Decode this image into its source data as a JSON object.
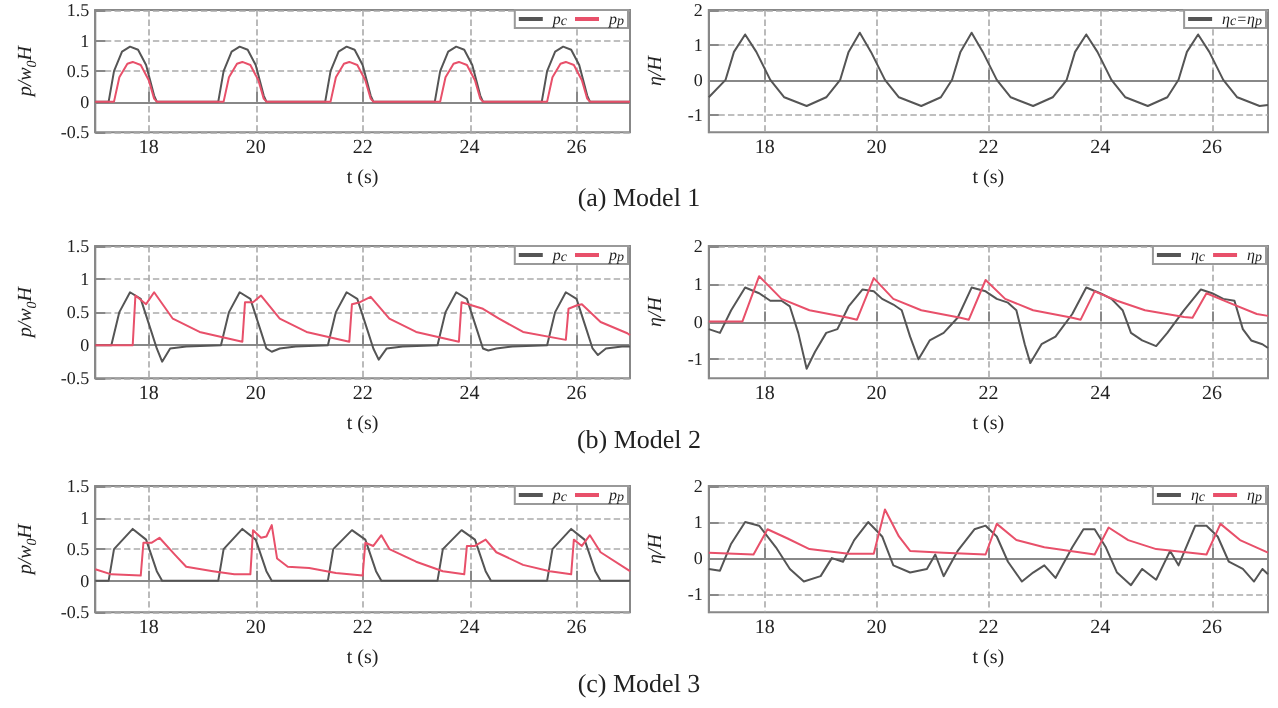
{
  "chart_data": [
    {
      "type": "line",
      "xlabel": "t (s)",
      "ylabel": "p/w$_{0}$H",
      "xlim": [
        17,
        27
      ],
      "xticks": [
        18,
        20,
        22,
        24,
        26
      ],
      "ylim": [
        -0.5,
        1.5
      ],
      "yticks": [
        -0.5,
        0,
        0.5,
        1,
        1.5
      ],
      "grid": true,
      "legend": "top right",
      "marker": "none",
      "annotations": [
        "(a) Model 1"
      ],
      "series": [
        {
          "name": "p$_{c}$",
          "color": "#555555",
          "x": [
            17,
            17.25,
            17.35,
            17.5,
            17.65,
            17.8,
            17.95,
            18.1,
            18.15,
            19.3,
            19.4,
            19.55,
            19.7,
            19.85,
            20.0,
            20.15,
            20.2,
            21.3,
            21.4,
            21.55,
            21.7,
            21.85,
            22.0,
            22.15,
            22.2,
            23.35,
            23.45,
            23.6,
            23.75,
            23.9,
            24.05,
            24.2,
            24.25,
            25.35,
            25.45,
            25.6,
            25.75,
            25.9,
            26.05,
            26.2,
            26.25,
            27
          ],
          "values": [
            0,
            0,
            0.5,
            0.82,
            0.9,
            0.85,
            0.6,
            0.1,
            0,
            0,
            0.5,
            0.82,
            0.9,
            0.85,
            0.6,
            0.1,
            0,
            0,
            0.5,
            0.82,
            0.9,
            0.85,
            0.6,
            0.1,
            0,
            0,
            0.5,
            0.82,
            0.9,
            0.85,
            0.6,
            0.1,
            0,
            0,
            0.5,
            0.82,
            0.9,
            0.85,
            0.6,
            0.1,
            0,
            0
          ]
        },
        {
          "name": "p$_{p}$",
          "color": "#e8506a",
          "x": [
            17,
            17.35,
            17.45,
            17.6,
            17.7,
            17.85,
            18.0,
            18.1,
            18.15,
            19.4,
            19.5,
            19.65,
            19.75,
            19.9,
            20.05,
            20.15,
            20.2,
            21.4,
            21.5,
            21.65,
            21.75,
            21.9,
            22.05,
            22.15,
            22.2,
            23.45,
            23.55,
            23.7,
            23.8,
            23.95,
            24.1,
            24.2,
            24.25,
            25.45,
            25.55,
            25.7,
            25.8,
            25.95,
            26.1,
            26.2,
            26.25,
            27
          ],
          "values": [
            0,
            0,
            0.4,
            0.62,
            0.65,
            0.6,
            0.35,
            0.05,
            0,
            0,
            0.4,
            0.62,
            0.65,
            0.6,
            0.35,
            0.05,
            0,
            0,
            0.4,
            0.62,
            0.65,
            0.6,
            0.35,
            0.05,
            0,
            0,
            0.4,
            0.62,
            0.65,
            0.6,
            0.35,
            0.05,
            0,
            0,
            0.4,
            0.62,
            0.65,
            0.6,
            0.35,
            0.05,
            0,
            0
          ]
        }
      ]
    },
    {
      "type": "line",
      "xlabel": "t (s)",
      "ylabel": "η/H",
      "xlim": [
        17,
        27
      ],
      "xticks": [
        18,
        20,
        22,
        24,
        26
      ],
      "ylim": [
        -1.5,
        2
      ],
      "yticks": [
        -1,
        0,
        1,
        2
      ],
      "grid": true,
      "legend": "top right",
      "marker": "none",
      "series": [
        {
          "name": "η$_{c}$=η$_{p}$",
          "color": "#555555",
          "x": [
            17,
            17.3,
            17.45,
            17.65,
            17.85,
            18.1,
            18.35,
            18.75,
            19.1,
            19.35,
            19.5,
            19.7,
            19.9,
            20.15,
            20.4,
            20.8,
            21.15,
            21.35,
            21.5,
            21.7,
            21.9,
            22.15,
            22.4,
            22.8,
            23.15,
            23.4,
            23.55,
            23.75,
            23.95,
            24.2,
            24.45,
            24.85,
            25.2,
            25.4,
            25.55,
            25.75,
            25.95,
            26.2,
            26.45,
            26.85,
            27
          ],
          "values": [
            -0.5,
            0,
            0.8,
            1.3,
            0.8,
            0,
            -0.5,
            -0.75,
            -0.5,
            0,
            0.8,
            1.35,
            0.8,
            0,
            -0.5,
            -0.75,
            -0.5,
            0,
            0.8,
            1.35,
            0.8,
            0,
            -0.5,
            -0.75,
            -0.5,
            0,
            0.8,
            1.3,
            0.8,
            0,
            -0.5,
            -0.75,
            -0.5,
            0,
            0.8,
            1.3,
            0.8,
            0,
            -0.5,
            -0.75,
            -0.72
          ]
        }
      ]
    },
    {
      "type": "line",
      "xlabel": "t (s)",
      "ylabel": "p/w$_{0}$H",
      "xlim": [
        17,
        27
      ],
      "xticks": [
        18,
        20,
        22,
        24,
        26
      ],
      "ylim": [
        -0.5,
        1.5
      ],
      "yticks": [
        -0.5,
        0,
        0.5,
        1,
        1.5
      ],
      "grid": true,
      "legend": "top right",
      "marker": "none",
      "annotations": [
        "(b) Model 2"
      ],
      "series": [
        {
          "name": "p$_{c}$",
          "color": "#555555",
          "x": [
            17,
            17.3,
            17.45,
            17.65,
            17.85,
            18.05,
            18.15,
            18.25,
            18.4,
            18.7,
            19.35,
            19.5,
            19.7,
            19.9,
            20.1,
            20.2,
            20.3,
            20.45,
            20.75,
            21.35,
            21.5,
            21.7,
            21.9,
            22.1,
            22.2,
            22.3,
            22.45,
            22.75,
            23.4,
            23.55,
            23.75,
            23.95,
            24.15,
            24.25,
            24.35,
            24.5,
            24.8,
            25.45,
            25.6,
            25.8,
            26.0,
            26.2,
            26.3,
            26.4,
            26.55,
            26.85,
            27
          ],
          "values": [
            0,
            0,
            0.5,
            0.8,
            0.7,
            0.2,
            -0.05,
            -0.25,
            -0.05,
            -0.02,
            0,
            0.5,
            0.8,
            0.7,
            0.2,
            -0.05,
            -0.1,
            -0.05,
            -0.02,
            0,
            0.5,
            0.8,
            0.7,
            0.2,
            -0.05,
            -0.22,
            -0.05,
            -0.02,
            0,
            0.5,
            0.8,
            0.7,
            0.2,
            -0.05,
            -0.08,
            -0.05,
            -0.02,
            0,
            0.5,
            0.8,
            0.7,
            0.2,
            -0.05,
            -0.15,
            -0.05,
            -0.02,
            -0.02
          ]
        },
        {
          "name": "p$_{p}$",
          "color": "#e8506a",
          "x": [
            17,
            17.7,
            17.75,
            17.95,
            18.1,
            18.45,
            18.95,
            19.75,
            19.8,
            19.95,
            20.1,
            20.45,
            20.95,
            21.75,
            21.8,
            21.95,
            22.15,
            22.5,
            23.0,
            23.8,
            23.85,
            24.05,
            24.25,
            24.55,
            25.0,
            25.8,
            25.85,
            26.0,
            26.1,
            26.45,
            26.95,
            27
          ],
          "values": [
            0,
            0,
            0.75,
            0.62,
            0.8,
            0.4,
            0.2,
            0.05,
            0.65,
            0.65,
            0.75,
            0.4,
            0.2,
            0.05,
            0.62,
            0.65,
            0.73,
            0.4,
            0.2,
            0.05,
            0.65,
            0.6,
            0.55,
            0.4,
            0.2,
            0.08,
            0.55,
            0.6,
            0.62,
            0.35,
            0.18,
            0.15
          ]
        }
      ]
    },
    {
      "type": "line",
      "xlabel": "t (s)",
      "ylabel": "η/H",
      "xlim": [
        17,
        27
      ],
      "xticks": [
        18,
        20,
        22,
        24,
        26
      ],
      "ylim": [
        -1.5,
        2
      ],
      "yticks": [
        -1,
        0,
        1,
        2
      ],
      "grid": true,
      "legend": "top right",
      "marker": "none",
      "series": [
        {
          "name": "η$_{c}$",
          "color": "#555555",
          "x": [
            17,
            17.2,
            17.4,
            17.65,
            17.9,
            18.1,
            18.3,
            18.45,
            18.6,
            18.75,
            18.9,
            19.1,
            19.3,
            19.5,
            19.75,
            19.95,
            20.1,
            20.3,
            20.45,
            20.6,
            20.75,
            20.95,
            21.2,
            21.45,
            21.7,
            21.95,
            22.15,
            22.35,
            22.5,
            22.65,
            22.75,
            22.95,
            23.2,
            23.5,
            23.75,
            24.0,
            24.2,
            24.4,
            24.55,
            24.75,
            25.0,
            25.2,
            25.5,
            25.8,
            26.0,
            26.2,
            26.4,
            26.55,
            26.7,
            26.9,
            27
          ],
          "values": [
            -0.2,
            -0.3,
            0.3,
            0.9,
            0.75,
            0.55,
            0.55,
            0.4,
            -0.3,
            -1.25,
            -0.8,
            -0.3,
            -0.2,
            0.4,
            0.85,
            0.8,
            0.6,
            0.45,
            0.3,
            -0.4,
            -1.0,
            -0.5,
            -0.3,
            0.1,
            0.9,
            0.8,
            0.6,
            0.5,
            0.3,
            -0.6,
            -1.1,
            -0.6,
            -0.4,
            0.2,
            0.9,
            0.75,
            0.6,
            0.3,
            -0.3,
            -0.5,
            -0.65,
            -0.3,
            0.3,
            0.85,
            0.75,
            0.6,
            0.55,
            -0.2,
            -0.5,
            -0.6,
            -0.7
          ]
        },
        {
          "name": "η$_{p}$",
          "color": "#e8506a",
          "x": [
            17,
            17.6,
            17.9,
            18.3,
            18.8,
            19.5,
            19.65,
            19.95,
            20.3,
            20.8,
            21.5,
            21.65,
            21.95,
            22.3,
            22.8,
            23.5,
            23.65,
            23.9,
            24.3,
            24.8,
            25.5,
            25.65,
            25.9,
            26.3,
            26.8,
            27
          ],
          "values": [
            0,
            0,
            1.2,
            0.6,
            0.3,
            0.1,
            0.05,
            1.15,
            0.6,
            0.3,
            0.1,
            0.05,
            1.1,
            0.6,
            0.3,
            0.1,
            0.05,
            0.8,
            0.55,
            0.3,
            0.12,
            0.1,
            0.75,
            0.5,
            0.2,
            0.15
          ]
        }
      ]
    },
    {
      "type": "line",
      "xlabel": "t (s)",
      "ylabel": "p/w$_{0}$H",
      "xlim": [
        17,
        27
      ],
      "xticks": [
        18,
        20,
        22,
        24,
        26
      ],
      "ylim": [
        -0.5,
        1.5
      ],
      "yticks": [
        -0.5,
        0,
        0.5,
        1,
        1.5
      ],
      "grid": true,
      "legend": "top right",
      "marker": "none",
      "annotations": [
        "(c) Model 3"
      ],
      "series": [
        {
          "name": "p$_{c}$",
          "color": "#555555",
          "x": [
            17,
            17.25,
            17.35,
            17.7,
            17.95,
            18.15,
            18.25,
            19.3,
            19.4,
            19.75,
            20.0,
            20.2,
            20.3,
            21.35,
            21.45,
            21.8,
            22.05,
            22.25,
            22.35,
            23.4,
            23.5,
            23.85,
            24.1,
            24.3,
            24.4,
            25.45,
            25.55,
            25.9,
            26.15,
            26.35,
            26.45,
            27
          ],
          "values": [
            0,
            0,
            0.5,
            0.82,
            0.65,
            0.15,
            0,
            0,
            0.5,
            0.82,
            0.65,
            0.15,
            0,
            0,
            0.5,
            0.8,
            0.65,
            0.15,
            0,
            0,
            0.5,
            0.8,
            0.65,
            0.15,
            0,
            0,
            0.5,
            0.82,
            0.65,
            0.15,
            0,
            0
          ]
        },
        {
          "name": "p$_{p}$",
          "color": "#e8506a",
          "x": [
            17,
            17.3,
            17.85,
            17.9,
            18.05,
            18.2,
            18.5,
            18.7,
            19.2,
            19.6,
            19.9,
            19.95,
            20.1,
            20.2,
            20.3,
            20.4,
            20.6,
            21.0,
            21.5,
            22.0,
            22.05,
            22.2,
            22.35,
            22.5,
            23.0,
            23.5,
            23.9,
            23.95,
            24.1,
            24.3,
            24.5,
            25.0,
            25.5,
            25.9,
            25.95,
            26.1,
            26.25,
            26.45,
            27
          ],
          "values": [
            0.18,
            0.1,
            0.08,
            0.6,
            0.6,
            0.68,
            0.4,
            0.22,
            0.15,
            0.1,
            0.1,
            0.8,
            0.68,
            0.7,
            0.88,
            0.35,
            0.22,
            0.2,
            0.12,
            0.08,
            0.6,
            0.55,
            0.72,
            0.5,
            0.3,
            0.15,
            0.1,
            0.55,
            0.55,
            0.65,
            0.45,
            0.25,
            0.15,
            0.1,
            0.65,
            0.55,
            0.72,
            0.45,
            0.15
          ]
        }
      ]
    },
    {
      "type": "line",
      "xlabel": "t (s)",
      "ylabel": "η/H",
      "xlim": [
        17,
        27
      ],
      "xticks": [
        18,
        20,
        22,
        24,
        26
      ],
      "ylim": [
        -1.5,
        2
      ],
      "yticks": [
        -1,
        0,
        1,
        2
      ],
      "grid": true,
      "legend": "top right",
      "marker": "none",
      "series": [
        {
          "name": "η$_{c}$",
          "color": "#555555",
          "x": [
            17,
            17.2,
            17.4,
            17.65,
            17.9,
            18.2,
            18.45,
            18.7,
            19.0,
            19.2,
            19.4,
            19.6,
            19.85,
            20.1,
            20.3,
            20.6,
            20.9,
            21.05,
            21.2,
            21.45,
            21.75,
            21.95,
            22.15,
            22.35,
            22.6,
            22.8,
            23.0,
            23.2,
            23.5,
            23.7,
            23.9,
            24.1,
            24.3,
            24.55,
            24.75,
            25.0,
            25.25,
            25.4,
            25.7,
            25.9,
            26.1,
            26.3,
            26.55,
            26.75,
            26.9,
            27
          ],
          "values": [
            -0.3,
            -0.35,
            0.4,
            1.0,
            0.9,
            0.3,
            -0.3,
            -0.65,
            -0.5,
            0.0,
            -0.1,
            0.5,
            1.0,
            0.6,
            -0.2,
            -0.4,
            -0.3,
            0.1,
            -0.5,
            0.2,
            0.8,
            0.9,
            0.6,
            -0.1,
            -0.65,
            -0.4,
            -0.2,
            -0.55,
            0.3,
            0.8,
            0.8,
            0.3,
            -0.4,
            -0.75,
            -0.3,
            -0.6,
            0.2,
            -0.2,
            0.9,
            0.9,
            0.6,
            -0.1,
            -0.3,
            -0.65,
            -0.3,
            -0.45
          ]
        },
        {
          "name": "η$_{p}$",
          "color": "#e8506a",
          "x": [
            17,
            17.8,
            18.05,
            18.4,
            18.8,
            19.5,
            19.95,
            20.15,
            20.4,
            20.6,
            21.2,
            21.95,
            22.15,
            22.5,
            23.0,
            23.9,
            24.15,
            24.5,
            25.0,
            25.9,
            26.15,
            26.5,
            27
          ],
          "values": [
            0.15,
            0.1,
            0.8,
            0.55,
            0.25,
            0.12,
            0.12,
            1.35,
            0.6,
            0.2,
            0.15,
            0.1,
            0.95,
            0.5,
            0.3,
            0.1,
            0.85,
            0.5,
            0.25,
            0.1,
            0.95,
            0.5,
            0.15
          ]
        }
      ]
    }
  ]
}
